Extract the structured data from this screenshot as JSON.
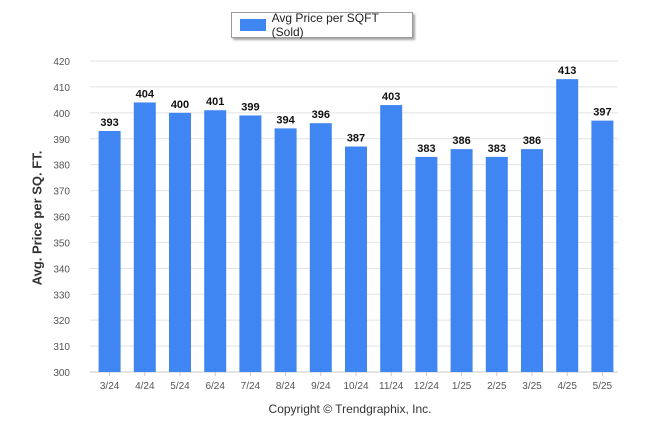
{
  "legend": {
    "label": "Avg Price per SQFT (Sold)",
    "color": "#3f86f2"
  },
  "copyright": "Copyright © Trendgraphix, Inc.",
  "colors": {
    "bar": "#3f86f2",
    "grid": "#e2e2e2",
    "axis": "#c8c8c8"
  },
  "chart_data": {
    "type": "bar",
    "categories": [
      "3/24",
      "4/24",
      "5/24",
      "6/24",
      "7/24",
      "8/24",
      "9/24",
      "10/24",
      "11/24",
      "12/24",
      "1/25",
      "2/25",
      "3/25",
      "4/25",
      "5/25"
    ],
    "series": [
      {
        "name": "Avg Price per SQFT (Sold)",
        "values": [
          393,
          404,
          400,
          401,
          399,
          394,
          396,
          387,
          403,
          383,
          386,
          383,
          386,
          413,
          397
        ]
      }
    ],
    "ylabel": "Avg. Price per SQ. FT.",
    "xlabel": "",
    "ylim": [
      300,
      420
    ],
    "yticks": [
      300,
      310,
      320,
      330,
      340,
      350,
      360,
      370,
      380,
      390,
      400,
      410,
      420
    ],
    "grid": true,
    "legend_position": "top-center",
    "data_labels": true
  }
}
